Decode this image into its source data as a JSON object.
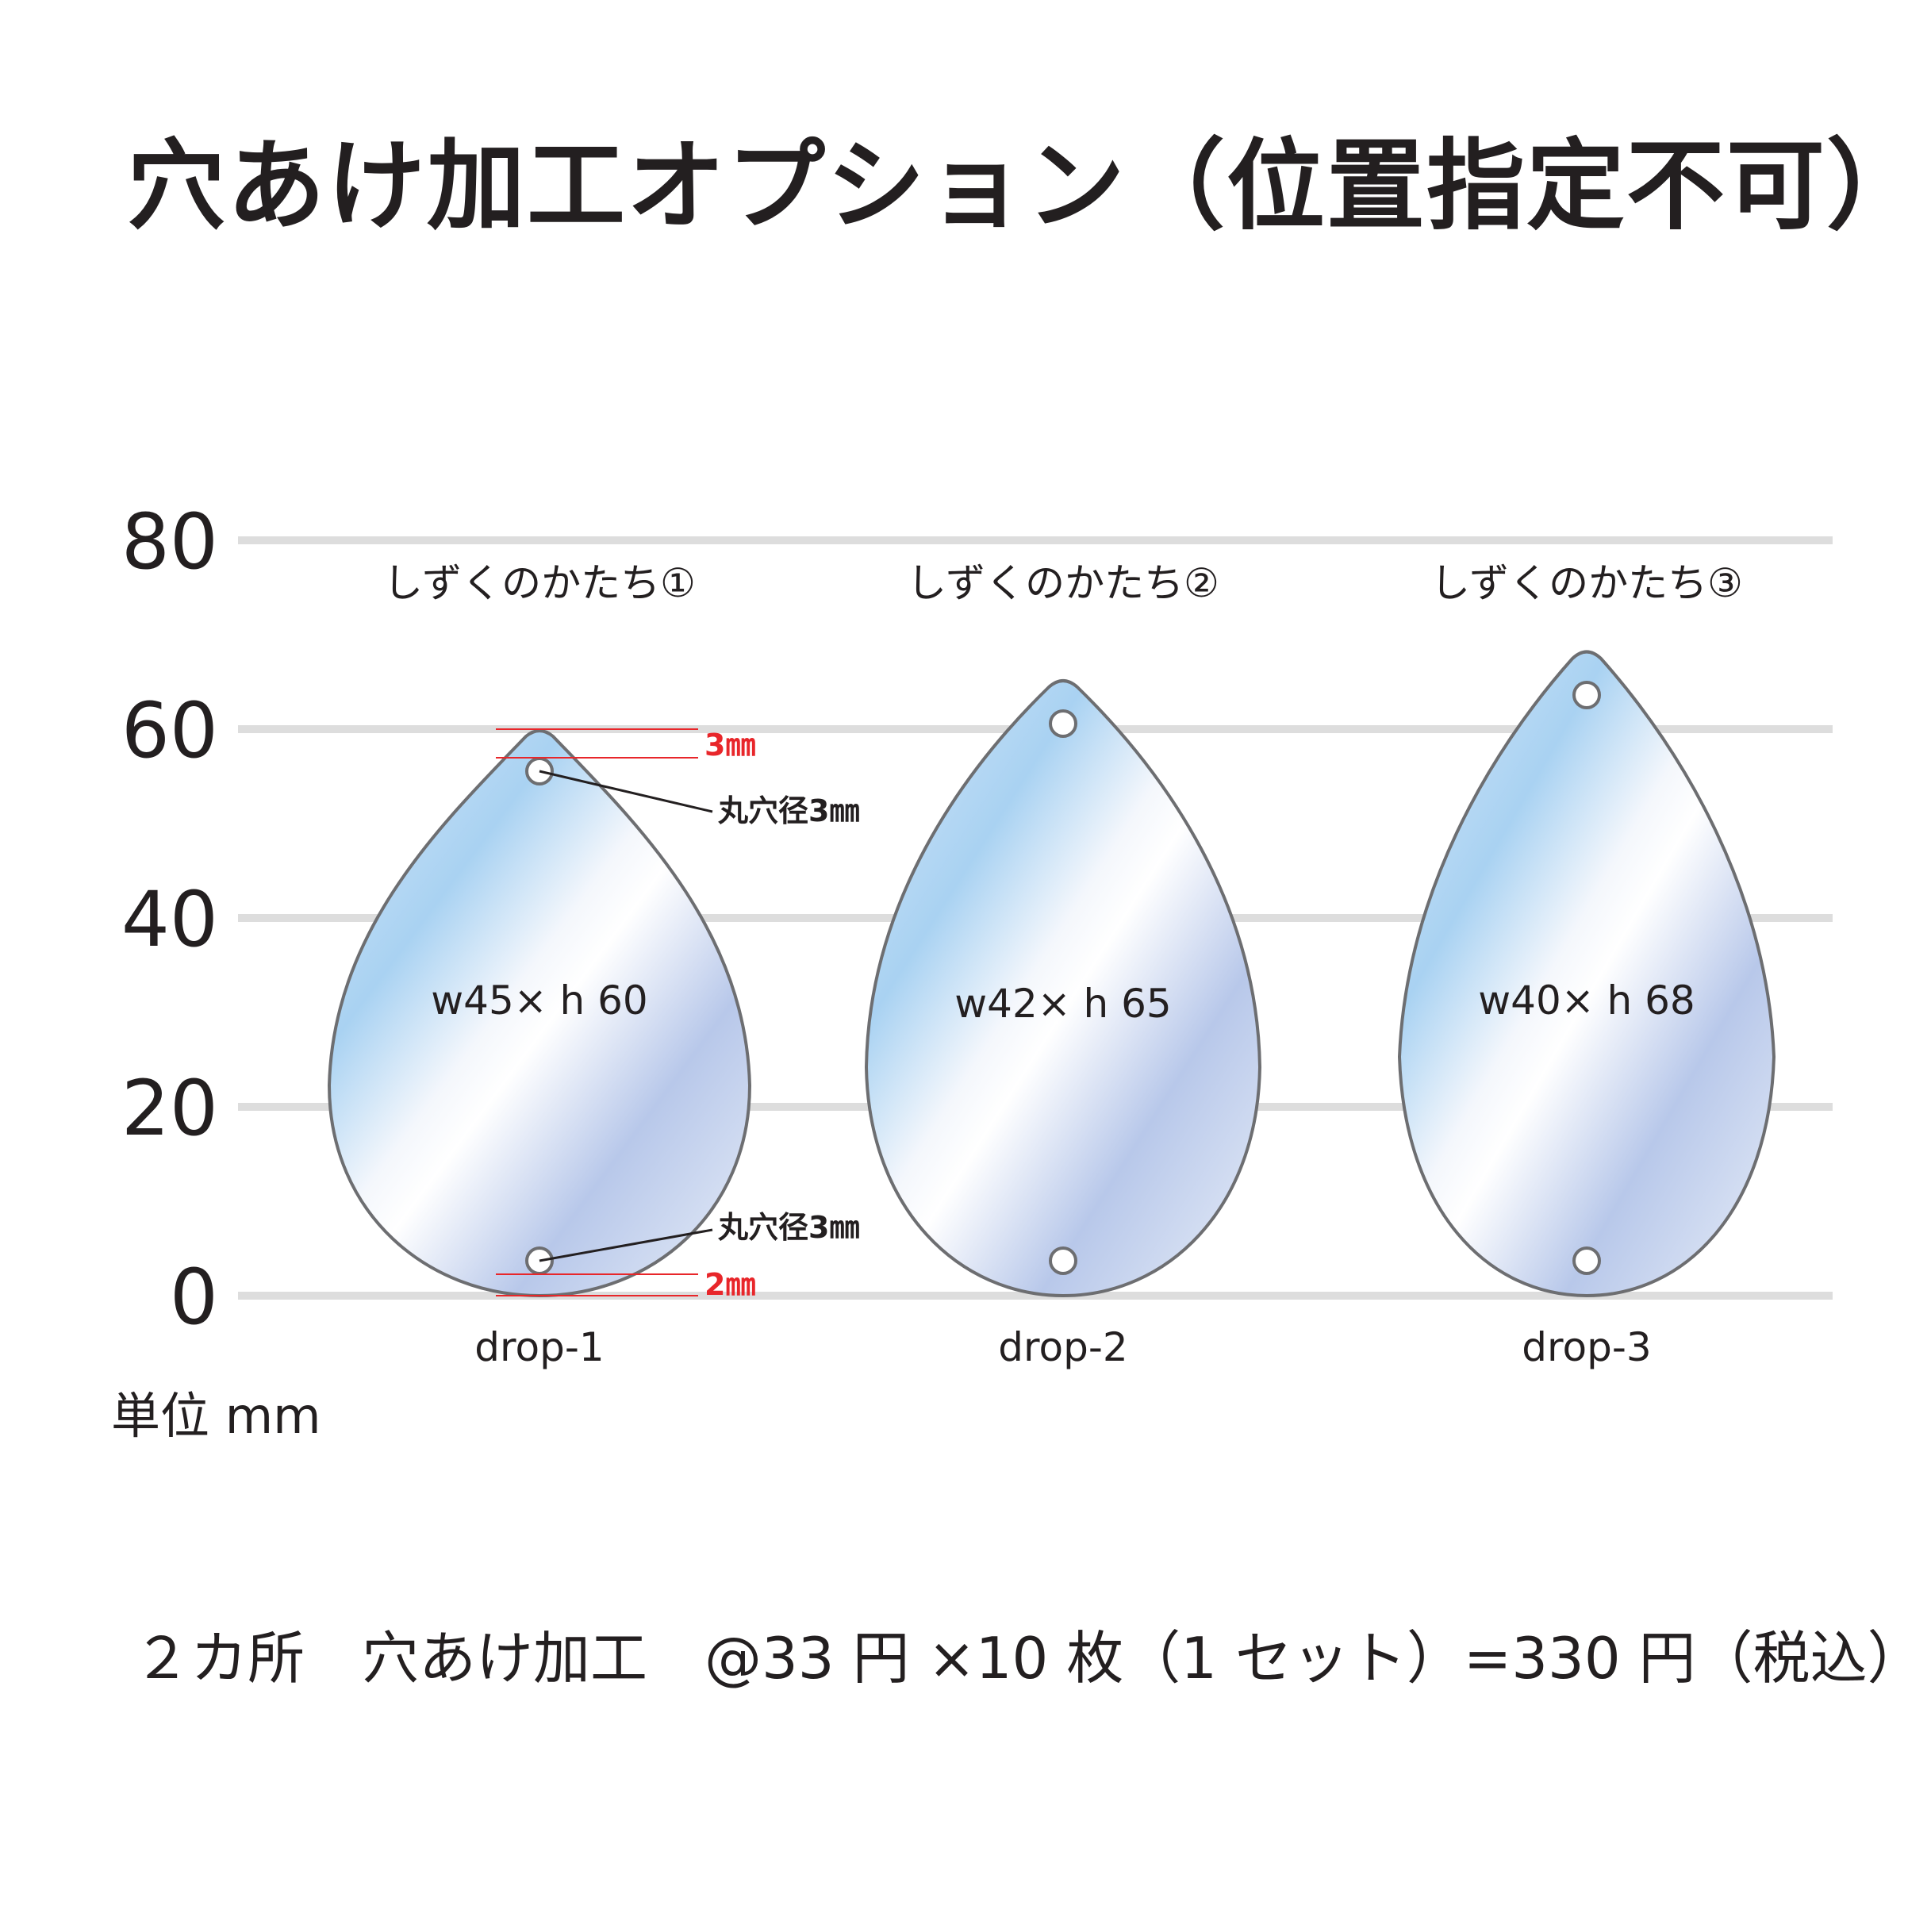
{
  "title": "穴あけ加工オプション（位置指定不可）",
  "axis": {
    "ticks": [
      "80",
      "60",
      "40",
      "20",
      "0"
    ]
  },
  "unit_label": "単位 mm",
  "drops": [
    {
      "name": "drop-1",
      "caption": "しずくのかたち①",
      "size": "w45× h 60"
    },
    {
      "name": "drop-2",
      "caption": "しずくのかたち②",
      "size": "w42× h 65"
    },
    {
      "name": "drop-3",
      "caption": "しずくのかたち③",
      "size": "w40× h 68"
    }
  ],
  "annotations": {
    "hole_top": "丸穴径3㎜",
    "hole_bottom": "丸穴径3㎜",
    "top_margin": "3㎜",
    "bottom_margin": "2㎜"
  },
  "footer": "２カ所　穴あけ加工　@33 円 ×10 枚（1 セット）=330 円（税込）",
  "colors": {
    "accent_red": "#e8262a",
    "gridline": "#dddddd",
    "outline": "#6d6e71",
    "text": "#231f20"
  }
}
